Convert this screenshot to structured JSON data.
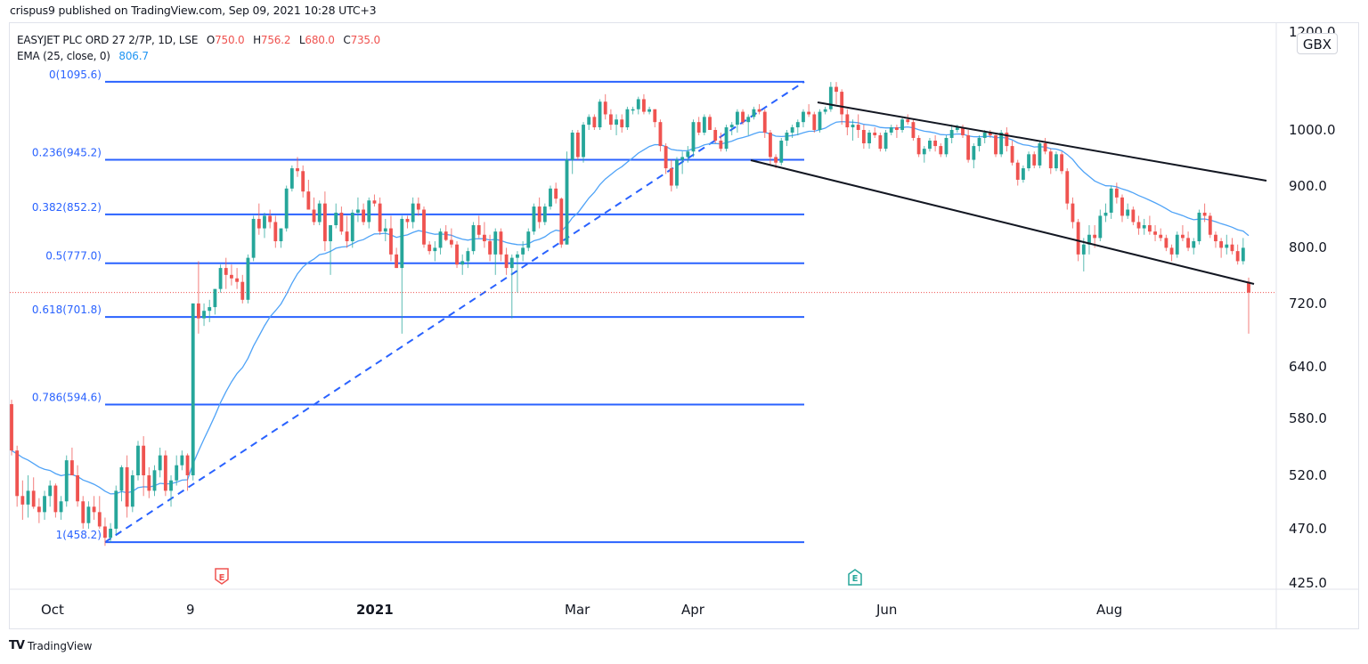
{
  "header": {
    "publisher_line": "crispus9 published on TradingView.com, Sep 09, 2021 10:28 UTC+3"
  },
  "legend": {
    "symbol_line": "EASYJET PLC ORD 27 2/7P, 1D, LSE",
    "open_label": "O",
    "open_value": "750.0",
    "high_label": "H",
    "high_value": "756.2",
    "low_label": "L",
    "low_value": "680.0",
    "close_label": "C",
    "close_value": "735.0",
    "ema_label": "EMA (25, close, 0)",
    "ema_value": "806.7"
  },
  "price_axis": {
    "unit": "GBX",
    "ticks": [
      "1200.0",
      "1000.0",
      "900.0",
      "800.0",
      "720.0",
      "640.0",
      "580.0",
      "520.0",
      "470.0",
      "425.0"
    ]
  },
  "time_axis": {
    "ticks": [
      "Oct",
      "9",
      "2021",
      "Mar",
      "Apr",
      "Jun",
      "Aug"
    ]
  },
  "footer": {
    "brand": "TradingView",
    "logo": "TV"
  },
  "colors": {
    "up": "#26a69a",
    "down": "#ef5350",
    "ema": "#4fa3f7",
    "fib": "#2962ff",
    "channel": "#131722",
    "grid": "#e0e3eb",
    "last_price": "#ef5350"
  },
  "chart_data": {
    "type": "candlestick",
    "title": "EASYJET PLC ORD 27 2/7P, 1D, LSE",
    "ylabel": "GBX",
    "ylim": [
      425,
      1200
    ],
    "scale": "log",
    "x_ticks": [
      "Oct",
      "9",
      "2021",
      "Mar",
      "Apr",
      "Jun",
      "Aug"
    ],
    "y_ticks": [
      1200,
      1000,
      900,
      800,
      720,
      640,
      580,
      520,
      470,
      425
    ],
    "last_price": 735.0,
    "ohlc_last": {
      "open": 750.0,
      "high": 756.2,
      "low": 680.0,
      "close": 735.0
    },
    "ema": {
      "period": 25,
      "source": "close",
      "offset": 0,
      "last": 806.7
    },
    "fibonacci_retracement": [
      {
        "level": "0",
        "price": 1095.6
      },
      {
        "level": "0.236",
        "price": 945.2
      },
      {
        "level": "0.382",
        "price": 852.2
      },
      {
        "level": "0.5",
        "price": 777.0
      },
      {
        "level": "0.618",
        "price": 701.8
      },
      {
        "level": "0.786",
        "price": 594.6
      },
      {
        "level": "1",
        "price": 458.2
      }
    ],
    "events": [
      {
        "type": "earnings",
        "label": "E",
        "x_near": "Nov 2020",
        "color": "#ef5350"
      },
      {
        "type": "earnings",
        "label": "E",
        "x_near": "May 2021",
        "color": "#26a69a"
      }
    ],
    "annotations": [
      "Descending channel from May 2021 high to Sep 2021",
      "Dashed trend line from Oct 2020 low to May 2021 high"
    ],
    "candles": [
      [
        595,
        600,
        540,
        545
      ],
      [
        545,
        550,
        490,
        500
      ],
      [
        500,
        515,
        478,
        492
      ],
      [
        492,
        520,
        480,
        505
      ],
      [
        505,
        518,
        488,
        490
      ],
      [
        490,
        498,
        475,
        485
      ],
      [
        485,
        505,
        478,
        500
      ],
      [
        500,
        515,
        490,
        510
      ],
      [
        510,
        512,
        480,
        485
      ],
      [
        485,
        500,
        478,
        495
      ],
      [
        495,
        540,
        490,
        535
      ],
      [
        535,
        548,
        520,
        520
      ],
      [
        520,
        530,
        490,
        495
      ],
      [
        495,
        500,
        470,
        475
      ],
      [
        475,
        495,
        470,
        490
      ],
      [
        490,
        500,
        478,
        485
      ],
      [
        485,
        500,
        470,
        472
      ],
      [
        472,
        480,
        455,
        462
      ],
      [
        462,
        475,
        458,
        470
      ],
      [
        470,
        510,
        465,
        505
      ],
      [
        505,
        530,
        495,
        528
      ],
      [
        528,
        540,
        480,
        490
      ],
      [
        490,
        525,
        485,
        520
      ],
      [
        520,
        555,
        515,
        550
      ],
      [
        550,
        560,
        500,
        520
      ],
      [
        520,
        528,
        498,
        505
      ],
      [
        505,
        530,
        500,
        525
      ],
      [
        525,
        548,
        518,
        540
      ],
      [
        540,
        545,
        500,
        505
      ],
      [
        505,
        520,
        490,
        515
      ],
      [
        515,
        540,
        510,
        530
      ],
      [
        530,
        545,
        525,
        540
      ],
      [
        540,
        542,
        505,
        520
      ],
      [
        520,
        720,
        515,
        720
      ],
      [
        720,
        780,
        680,
        700
      ],
      [
        700,
        720,
        690,
        710
      ],
      [
        710,
        725,
        695,
        715
      ],
      [
        715,
        740,
        705,
        740
      ],
      [
        740,
        775,
        735,
        770
      ],
      [
        770,
        785,
        740,
        760
      ],
      [
        760,
        775,
        745,
        755
      ],
      [
        755,
        770,
        740,
        750
      ],
      [
        750,
        760,
        720,
        725
      ],
      [
        725,
        790,
        720,
        785
      ],
      [
        785,
        850,
        780,
        845
      ],
      [
        845,
        870,
        820,
        830
      ],
      [
        830,
        855,
        815,
        850
      ],
      [
        850,
        860,
        830,
        840
      ],
      [
        840,
        850,
        800,
        810
      ],
      [
        810,
        830,
        800,
        830
      ],
      [
        830,
        900,
        825,
        895
      ],
      [
        895,
        935,
        890,
        930
      ],
      [
        930,
        950,
        915,
        925
      ],
      [
        925,
        935,
        880,
        890
      ],
      [
        890,
        910,
        860,
        860
      ],
      [
        860,
        880,
        835,
        840
      ],
      [
        840,
        875,
        835,
        870
      ],
      [
        870,
        890,
        795,
        810
      ],
      [
        810,
        820,
        760,
        835
      ],
      [
        835,
        870,
        830,
        855
      ],
      [
        855,
        865,
        820,
        825
      ],
      [
        825,
        850,
        800,
        810
      ],
      [
        810,
        860,
        800,
        855
      ],
      [
        855,
        880,
        840,
        860
      ],
      [
        860,
        870,
        835,
        840
      ],
      [
        840,
        880,
        830,
        875
      ],
      [
        875,
        885,
        865,
        870
      ],
      [
        870,
        880,
        820,
        825
      ],
      [
        825,
        845,
        810,
        830
      ],
      [
        830,
        850,
        780,
        790
      ],
      [
        790,
        800,
        770,
        770
      ],
      [
        770,
        850,
        680,
        845
      ],
      [
        845,
        850,
        830,
        840
      ],
      [
        840,
        880,
        830,
        870
      ],
      [
        870,
        880,
        850,
        860
      ],
      [
        860,
        865,
        800,
        805
      ],
      [
        805,
        810,
        790,
        795
      ],
      [
        795,
        810,
        780,
        800
      ],
      [
        800,
        830,
        790,
        825
      ],
      [
        825,
        835,
        810,
        812
      ],
      [
        812,
        830,
        800,
        805
      ],
      [
        805,
        810,
        770,
        775
      ],
      [
        775,
        790,
        760,
        780
      ],
      [
        780,
        800,
        770,
        795
      ],
      [
        795,
        840,
        790,
        835
      ],
      [
        835,
        850,
        815,
        820
      ],
      [
        820,
        840,
        800,
        810
      ],
      [
        810,
        820,
        780,
        790
      ],
      [
        790,
        830,
        760,
        825
      ],
      [
        825,
        830,
        780,
        790
      ],
      [
        790,
        800,
        760,
        770
      ],
      [
        770,
        790,
        700,
        785
      ],
      [
        785,
        795,
        735,
        790
      ],
      [
        790,
        810,
        780,
        800
      ],
      [
        800,
        830,
        795,
        825
      ],
      [
        825,
        870,
        820,
        865
      ],
      [
        865,
        880,
        830,
        840
      ],
      [
        840,
        870,
        835,
        865
      ],
      [
        865,
        900,
        860,
        895
      ],
      [
        895,
        905,
        870,
        878
      ],
      [
        878,
        880,
        800,
        805
      ],
      [
        805,
        960,
        805,
        945
      ],
      [
        945,
        1000,
        920,
        995
      ],
      [
        995,
        1000,
        945,
        950
      ],
      [
        950,
        1015,
        940,
        1010
      ],
      [
        1010,
        1030,
        1000,
        1025
      ],
      [
        1025,
        1030,
        1000,
        1005
      ],
      [
        1005,
        1060,
        1000,
        1055
      ],
      [
        1055,
        1070,
        1020,
        1030
      ],
      [
        1030,
        1040,
        1000,
        1010
      ],
      [
        1010,
        1030,
        990,
        1020
      ],
      [
        1020,
        1030,
        995,
        1005
      ],
      [
        1005,
        1045,
        1000,
        1040
      ],
      [
        1040,
        1045,
        1030,
        1040
      ],
      [
        1040,
        1065,
        1030,
        1060
      ],
      [
        1060,
        1070,
        1030,
        1035
      ],
      [
        1035,
        1045,
        1030,
        1040
      ],
      [
        1040,
        1040,
        1005,
        1015
      ],
      [
        1015,
        1020,
        960,
        970
      ],
      [
        970,
        975,
        920,
        930
      ],
      [
        930,
        945,
        890,
        900
      ],
      [
        900,
        950,
        895,
        945
      ],
      [
        945,
        960,
        920,
        950
      ],
      [
        950,
        970,
        940,
        960
      ],
      [
        960,
        1020,
        950,
        1015
      ],
      [
        1015,
        1025,
        990,
        995
      ],
      [
        995,
        1030,
        990,
        1025
      ],
      [
        1025,
        1030,
        1000,
        1000
      ],
      [
        1000,
        1005,
        975,
        980
      ],
      [
        980,
        995,
        960,
        965
      ],
      [
        965,
        1010,
        960,
        1005
      ],
      [
        1005,
        1015,
        990,
        1010
      ],
      [
        1010,
        1040,
        995,
        1035
      ],
      [
        1035,
        1040,
        1010,
        1015
      ],
      [
        1015,
        1030,
        990,
        1025
      ],
      [
        1025,
        1045,
        1020,
        1040
      ],
      [
        1040,
        1050,
        1030,
        1035
      ],
      [
        1035,
        1040,
        985,
        995
      ],
      [
        995,
        1000,
        935,
        950
      ],
      [
        950,
        955,
        930,
        940
      ],
      [
        940,
        985,
        935,
        980
      ],
      [
        980,
        1000,
        970,
        995
      ],
      [
        995,
        1010,
        985,
        1005
      ],
      [
        1005,
        1020,
        990,
        1015
      ],
      [
        1015,
        1040,
        1005,
        1035
      ],
      [
        1035,
        1050,
        1025,
        1030
      ],
      [
        1030,
        1035,
        995,
        1000
      ],
      [
        1000,
        1040,
        995,
        1035
      ],
      [
        1035,
        1045,
        1030,
        1040
      ],
      [
        1040,
        1095,
        1035,
        1085
      ],
      [
        1085,
        1095,
        1050,
        1075
      ],
      [
        1075,
        1080,
        1010,
        1030
      ],
      [
        1030,
        1040,
        990,
        1005
      ],
      [
        1005,
        1020,
        980,
        1010
      ],
      [
        1010,
        1030,
        985,
        1000
      ],
      [
        1000,
        1010,
        965,
        975
      ],
      [
        975,
        1000,
        965,
        995
      ],
      [
        995,
        1005,
        985,
        990
      ],
      [
        990,
        995,
        960,
        965
      ],
      [
        965,
        1000,
        960,
        995
      ],
      [
        995,
        1010,
        990,
        1005
      ],
      [
        1005,
        1010,
        985,
        1000
      ],
      [
        1000,
        1025,
        995,
        1020
      ],
      [
        1020,
        1030,
        1010,
        1015
      ],
      [
        1015,
        1020,
        980,
        985
      ],
      [
        985,
        990,
        950,
        955
      ],
      [
        955,
        970,
        940,
        965
      ],
      [
        965,
        985,
        960,
        980
      ],
      [
        980,
        990,
        960,
        970
      ],
      [
        970,
        975,
        950,
        955
      ],
      [
        955,
        990,
        950,
        985
      ],
      [
        985,
        1010,
        975,
        1000
      ],
      [
        1000,
        1010,
        995,
        1005
      ],
      [
        1005,
        1010,
        985,
        990
      ],
      [
        990,
        1000,
        940,
        945
      ],
      [
        945,
        975,
        930,
        970
      ],
      [
        970,
        990,
        960,
        985
      ],
      [
        985,
        1000,
        975,
        995
      ],
      [
        995,
        1000,
        985,
        990
      ],
      [
        990,
        995,
        950,
        955
      ],
      [
        955,
        1000,
        950,
        995
      ],
      [
        995,
        1005,
        960,
        970
      ],
      [
        970,
        980,
        935,
        940
      ],
      [
        940,
        945,
        900,
        910
      ],
      [
        910,
        935,
        905,
        930
      ],
      [
        930,
        960,
        925,
        955
      ],
      [
        955,
        960,
        930,
        935
      ],
      [
        935,
        980,
        930,
        975
      ],
      [
        975,
        985,
        955,
        960
      ],
      [
        960,
        965,
        920,
        930
      ],
      [
        930,
        960,
        925,
        955
      ],
      [
        955,
        960,
        920,
        925
      ],
      [
        925,
        930,
        860,
        870
      ],
      [
        870,
        880,
        830,
        840
      ],
      [
        840,
        845,
        780,
        790
      ],
      [
        790,
        815,
        765,
        805
      ],
      [
        805,
        835,
        790,
        820
      ],
      [
        820,
        835,
        800,
        815
      ],
      [
        815,
        860,
        810,
        850
      ],
      [
        850,
        870,
        840,
        855
      ],
      [
        855,
        900,
        845,
        895
      ],
      [
        895,
        905,
        870,
        880
      ],
      [
        880,
        885,
        840,
        850
      ],
      [
        850,
        870,
        845,
        860
      ],
      [
        860,
        865,
        835,
        840
      ],
      [
        840,
        850,
        820,
        830
      ],
      [
        830,
        845,
        820,
        835
      ],
      [
        835,
        850,
        820,
        825
      ],
      [
        825,
        835,
        810,
        820
      ],
      [
        820,
        830,
        810,
        815
      ],
      [
        815,
        820,
        795,
        800
      ],
      [
        800,
        805,
        780,
        790
      ],
      [
        790,
        825,
        785,
        820
      ],
      [
        820,
        835,
        810,
        815
      ],
      [
        815,
        825,
        795,
        800
      ],
      [
        800,
        815,
        790,
        810
      ],
      [
        810,
        860,
        805,
        855
      ],
      [
        855,
        870,
        840,
        850
      ],
      [
        850,
        855,
        815,
        820
      ],
      [
        820,
        825,
        800,
        810
      ],
      [
        810,
        815,
        785,
        800
      ],
      [
        800,
        820,
        790,
        805
      ],
      [
        805,
        815,
        790,
        795
      ],
      [
        795,
        805,
        775,
        780
      ],
      [
        780,
        815,
        775,
        800
      ],
      [
        750,
        756.2,
        680,
        735
      ]
    ]
  }
}
